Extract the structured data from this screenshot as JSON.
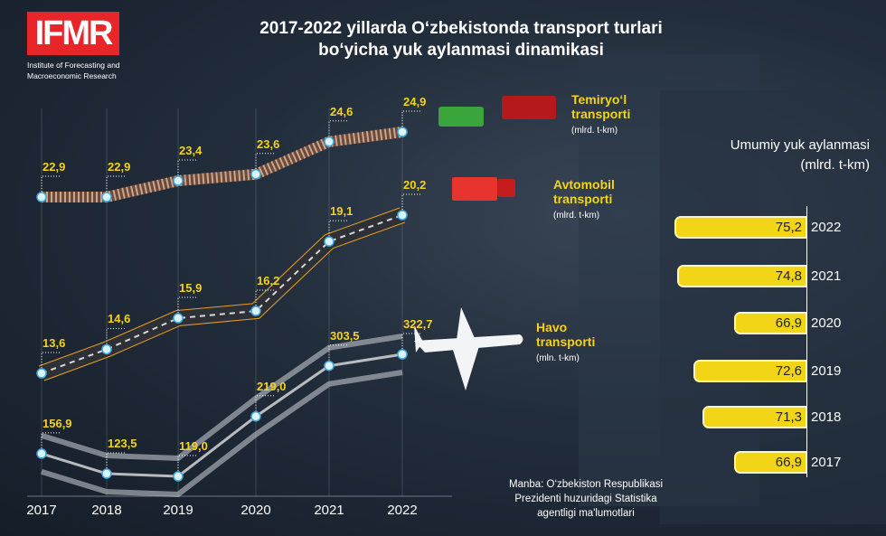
{
  "logo": {
    "text": "IFMR",
    "subtitle_line1": "Institute of Forecasting and",
    "subtitle_line2": "Macroeconomic Research"
  },
  "title_line1": "2017-2022 yillarda O‘zbekistonda transport turlari",
  "title_line2": "bo‘yicha yuk aylanmasi dinamikasi",
  "source": {
    "line1": "Manba:  O‘zbekiston Respublikasi",
    "line2": "Prezidenti huzuridagi Statistika",
    "line3": "agentligi ma'lumotlari"
  },
  "colors": {
    "accent": "#f4d31a",
    "background": "#1a2433",
    "bar": "#f2d516"
  },
  "chart_data": [
    {
      "type": "line",
      "categories": [
        "2017",
        "2018",
        "2019",
        "2020",
        "2021",
        "2022"
      ],
      "series": [
        {
          "name": "Temiryo‘l transporti",
          "unit": "(mlrd. t-km)",
          "values": [
            22.9,
            22.9,
            23.4,
            23.6,
            24.6,
            24.9
          ],
          "labels": [
            "22,9",
            "22,9",
            "23,4",
            "23,6",
            "24,6",
            "24,9"
          ]
        },
        {
          "name": "Avtomobil transporti",
          "unit": "(mlrd. t-km)",
          "values": [
            13.6,
            14.6,
            15.9,
            16.2,
            19.1,
            20.2
          ],
          "labels": [
            "13,6",
            "14,6",
            "15,9",
            "16,2",
            "19,1",
            "20,2"
          ]
        },
        {
          "name": "Havo transporti",
          "unit": "(mln. t-km)",
          "values": [
            156.9,
            123.5,
            119.0,
            219.0,
            303.5,
            322.7
          ],
          "labels": [
            "156,9",
            "123,5",
            "119,0",
            "219,0",
            "303,5",
            "322,7"
          ]
        }
      ]
    },
    {
      "type": "bar",
      "title": "Umumiy yuk aylanmasi",
      "unit": "(mlrd. t-km)",
      "categories": [
        "2022",
        "2021",
        "2020",
        "2019",
        "2018",
        "2017"
      ],
      "values": [
        75.2,
        74.8,
        66.9,
        72.6,
        71.3,
        66.9
      ],
      "labels": [
        "75,2",
        "74,8",
        "66,9",
        "72,6",
        "71,3",
        "66,9"
      ]
    }
  ]
}
